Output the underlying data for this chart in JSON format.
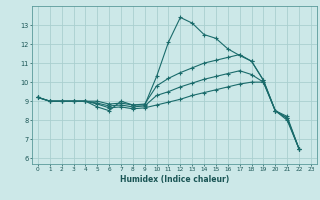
{
  "xlabel": "Humidex (Indice chaleur)",
  "xlim": [
    -0.5,
    23.5
  ],
  "ylim": [
    5.7,
    14.0
  ],
  "yticks": [
    6,
    7,
    8,
    9,
    10,
    11,
    12,
    13
  ],
  "xticks": [
    0,
    1,
    2,
    3,
    4,
    5,
    6,
    7,
    8,
    9,
    10,
    11,
    12,
    13,
    14,
    15,
    16,
    17,
    18,
    19,
    20,
    21,
    22,
    23
  ],
  "bg_color": "#cce8e8",
  "grid_color": "#aacfcf",
  "line_color": "#1a6b6b",
  "curves": [
    {
      "x": [
        0,
        1,
        2,
        3,
        4,
        5,
        6,
        7,
        8,
        9,
        10,
        11,
        12,
        13,
        14,
        15,
        16,
        17,
        18,
        19,
        20,
        21,
        22
      ],
      "y": [
        9.2,
        9.0,
        9.0,
        9.0,
        9.0,
        8.7,
        8.5,
        9.0,
        8.8,
        8.8,
        10.3,
        12.1,
        13.4,
        13.1,
        12.5,
        12.3,
        11.75,
        11.4,
        11.1,
        10.1,
        8.5,
        8.1,
        6.5
      ]
    },
    {
      "x": [
        0,
        1,
        2,
        3,
        4,
        5,
        6,
        7,
        8,
        9,
        10,
        11,
        12,
        13,
        14,
        15,
        16,
        17,
        18,
        19,
        20,
        21,
        22
      ],
      "y": [
        9.2,
        9.0,
        9.0,
        9.0,
        9.0,
        9.0,
        8.85,
        8.9,
        8.8,
        8.85,
        9.8,
        10.2,
        10.5,
        10.75,
        11.0,
        11.15,
        11.3,
        11.45,
        11.1,
        10.1,
        8.5,
        8.2,
        6.5
      ]
    },
    {
      "x": [
        0,
        1,
        2,
        3,
        4,
        5,
        6,
        7,
        8,
        9,
        10,
        11,
        12,
        13,
        14,
        15,
        16,
        17,
        18,
        19,
        20,
        21,
        22
      ],
      "y": [
        9.2,
        9.0,
        9.0,
        9.0,
        9.0,
        8.9,
        8.75,
        8.8,
        8.7,
        8.75,
        9.3,
        9.5,
        9.75,
        9.95,
        10.15,
        10.3,
        10.45,
        10.6,
        10.4,
        10.0,
        8.5,
        8.1,
        6.5
      ]
    },
    {
      "x": [
        0,
        1,
        2,
        3,
        4,
        5,
        6,
        7,
        8,
        9,
        10,
        11,
        12,
        13,
        14,
        15,
        16,
        17,
        18,
        19,
        20,
        21,
        22
      ],
      "y": [
        9.2,
        9.0,
        9.0,
        9.0,
        9.0,
        8.85,
        8.65,
        8.7,
        8.6,
        8.65,
        8.8,
        8.95,
        9.1,
        9.3,
        9.45,
        9.6,
        9.75,
        9.9,
        10.0,
        10.0,
        8.5,
        8.0,
        6.5
      ]
    }
  ]
}
